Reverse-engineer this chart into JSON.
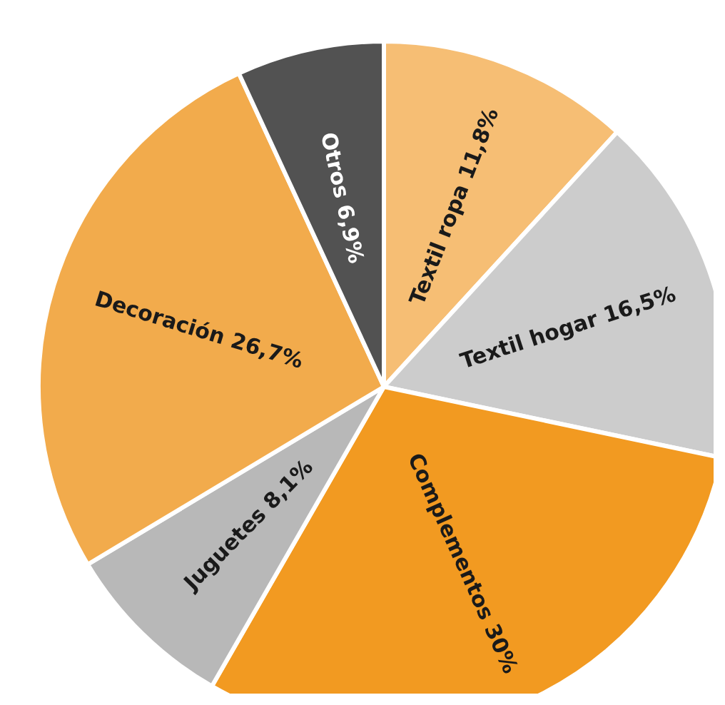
{
  "chart_data": {
    "type": "pie",
    "categories": [
      "Textil ropa",
      "Textil hogar",
      "Complementos",
      "Juguetes",
      "Decoración",
      "Otros"
    ],
    "values": [
      11.8,
      16.5,
      30,
      8.1,
      26.7,
      6.9
    ],
    "value_labels": [
      "11,8%",
      "16,5%",
      "30%",
      "8,1%",
      "26,7%",
      "6,9%"
    ],
    "colors": [
      "#f6be74",
      "#cccccc",
      "#f29a21",
      "#b8b8b8",
      "#f2ab4c",
      "#525252"
    ],
    "legend": false
  }
}
